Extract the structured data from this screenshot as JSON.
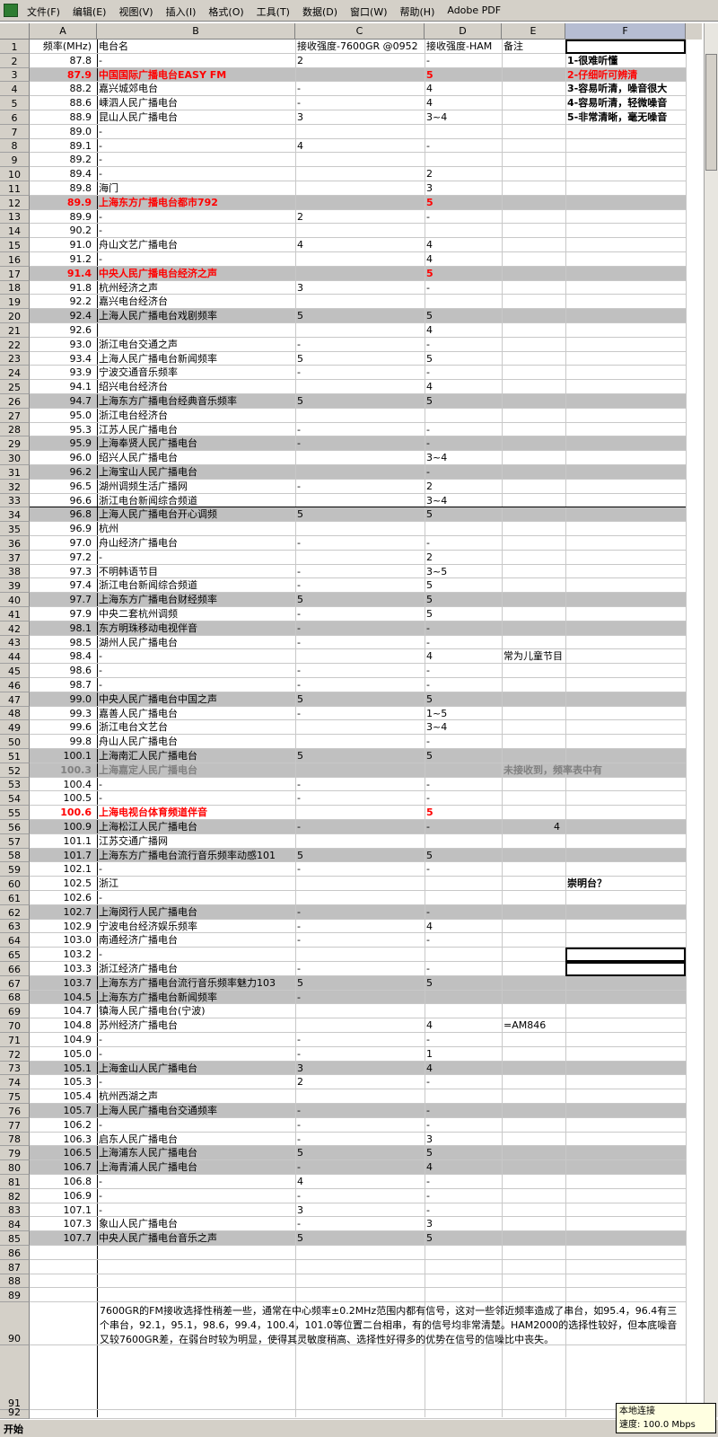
{
  "menu": [
    "文件(F)",
    "编辑(E)",
    "视图(V)",
    "插入(I)",
    "格式(O)",
    "工具(T)",
    "数据(D)",
    "窗口(W)",
    "帮助(H)",
    "Adobe PDF"
  ],
  "columns": [
    "A",
    "B",
    "C",
    "D",
    "E",
    "F"
  ],
  "tooltip": {
    "title": "本地连接",
    "speed": "速度: 100.0 Mbps"
  },
  "taskbar": {
    "start": "开始"
  },
  "rows": [
    {
      "n": "1",
      "cells": [
        "频率(MHz)",
        "电台名",
        "接收强度-7600GR @0952",
        "接收强度-HAM",
        "备注",
        null
      ]
    },
    {
      "n": "2",
      "cells": [
        "87.8",
        "-",
        "2",
        "-",
        null,
        "1-很难听懂"
      ]
    },
    {
      "n": "3",
      "cells": [
        "87.9",
        "中国国际广播电台EASY FM",
        null,
        "5",
        null,
        "2-仔细听可辨清"
      ],
      "shade": true,
      "text_color": "red"
    },
    {
      "n": "4",
      "cells": [
        "88.2",
        "嘉兴城郊电台",
        "-",
        "4",
        null,
        "3-容易听清，噪音很大"
      ]
    },
    {
      "n": "5",
      "cells": [
        "88.6",
        "嵊泗人民广播电台",
        "-",
        "4",
        null,
        "4-容易听清，轻微噪音"
      ]
    },
    {
      "n": "6",
      "cells": [
        "88.9",
        "昆山人民广播电台",
        "3",
        "3~4",
        null,
        "5-非常清晰，毫无噪音"
      ]
    },
    {
      "n": "7",
      "cells": [
        "89.0",
        "-",
        null,
        null,
        null,
        null
      ]
    },
    {
      "n": "8",
      "cells": [
        "89.1",
        "-",
        "4",
        "-",
        null,
        null
      ]
    },
    {
      "n": "9",
      "cells": [
        "89.2",
        "-",
        null,
        null,
        null,
        null
      ]
    },
    {
      "n": "10",
      "cells": [
        "89.4",
        "-",
        null,
        "2",
        null,
        null
      ]
    },
    {
      "n": "11",
      "cells": [
        "89.8",
        "海门",
        null,
        "3",
        null,
        null
      ]
    },
    {
      "n": "12",
      "cells": [
        "89.9",
        "上海东方广播电台都市792",
        null,
        "5",
        null,
        null
      ],
      "shade": true,
      "text_color": "red"
    },
    {
      "n": "13",
      "cells": [
        "89.9",
        "-",
        "2",
        "-",
        null,
        null
      ]
    },
    {
      "n": "14",
      "cells": [
        "90.2",
        "-",
        null,
        null,
        null,
        null
      ]
    },
    {
      "n": "15",
      "cells": [
        "91.0",
        "舟山文艺广播电台",
        "4",
        "4",
        null,
        null
      ]
    },
    {
      "n": "16",
      "cells": [
        "91.2",
        "-",
        null,
        "4",
        null,
        null
      ]
    },
    {
      "n": "17",
      "cells": [
        "91.4",
        "中央人民广播电台经济之声",
        null,
        "5",
        null,
        null
      ],
      "shade": true,
      "text_color": "red"
    },
    {
      "n": "18",
      "cells": [
        "91.8",
        "杭州经济之声",
        "3",
        "-",
        null,
        null
      ]
    },
    {
      "n": "19",
      "cells": [
        "92.2",
        "嘉兴电台经济台",
        null,
        null,
        null,
        null
      ]
    },
    {
      "n": "20",
      "cells": [
        "92.4",
        "上海人民广播电台戏剧频率",
        "5",
        "5",
        null,
        null
      ],
      "shade": true
    },
    {
      "n": "21",
      "cells": [
        "92.6",
        null,
        null,
        "4",
        null,
        null
      ]
    },
    {
      "n": "22",
      "cells": [
        "93.0",
        "浙江电台交通之声",
        "-",
        "-",
        null,
        null
      ]
    },
    {
      "n": "23",
      "cells": [
        "93.4",
        "上海人民广播电台新闻频率",
        "5",
        "5",
        null,
        null
      ]
    },
    {
      "n": "24",
      "cells": [
        "93.9",
        "宁波交通音乐频率",
        "-",
        "-",
        null,
        null
      ]
    },
    {
      "n": "25",
      "cells": [
        "94.1",
        "绍兴电台经济台",
        null,
        "4",
        null,
        null
      ]
    },
    {
      "n": "26",
      "cells": [
        "94.7",
        "上海东方广播电台经典音乐频率",
        "5",
        "5",
        null,
        null
      ],
      "shade": true
    },
    {
      "n": "27",
      "cells": [
        "95.0",
        "浙江电台经济台",
        null,
        null,
        null,
        null
      ]
    },
    {
      "n": "28",
      "cells": [
        "95.3",
        "江苏人民广播电台",
        "-",
        "-",
        null,
        null
      ]
    },
    {
      "n": "29",
      "cells": [
        "95.9",
        "上海奉贤人民广播电台",
        "-",
        "-",
        null,
        null
      ],
      "shade": true
    },
    {
      "n": "30",
      "cells": [
        "96.0",
        "绍兴人民广播电台",
        null,
        "3~4",
        null,
        null
      ]
    },
    {
      "n": "31",
      "cells": [
        "96.2",
        "上海宝山人民广播电台",
        null,
        "-",
        null,
        null
      ],
      "shade": true
    },
    {
      "n": "32",
      "cells": [
        "96.5",
        "湖州调频生活广播网",
        "-",
        "2",
        null,
        null
      ]
    },
    {
      "n": "33",
      "cells": [
        "96.6",
        "浙江电台新闻综合频道",
        null,
        "3~4",
        null,
        null
      ]
    },
    {
      "n": "34",
      "cells": [
        "96.8",
        "上海人民广播电台开心调频",
        "5",
        "5",
        null,
        null
      ],
      "shade": true
    },
    {
      "n": "35",
      "cells": [
        "96.9",
        "杭州",
        null,
        null,
        null,
        null
      ]
    },
    {
      "n": "36",
      "cells": [
        "97.0",
        "舟山经济广播电台",
        "-",
        "-",
        null,
        null
      ]
    },
    {
      "n": "37",
      "cells": [
        "97.2",
        "-",
        null,
        "2",
        null,
        null
      ]
    },
    {
      "n": "38",
      "cells": [
        "97.3",
        "不明韩语节目",
        "-",
        "3~5",
        null,
        null
      ]
    },
    {
      "n": "39",
      "cells": [
        "97.4",
        "浙江电台新闻综合频道",
        "-",
        "5",
        null,
        null
      ]
    },
    {
      "n": "40",
      "cells": [
        "97.7",
        "上海东方广播电台财经频率",
        "5",
        "5",
        null,
        null
      ],
      "shade": true
    },
    {
      "n": "41",
      "cells": [
        "97.9",
        "中央二套杭州调频",
        "-",
        "5",
        null,
        null
      ]
    },
    {
      "n": "42",
      "cells": [
        "98.1",
        "东方明珠移动电视伴音",
        "-",
        "-",
        null,
        null
      ],
      "shade": true
    },
    {
      "n": "43",
      "cells": [
        "98.5",
        "湖州人民广播电台",
        "-",
        "-",
        null,
        null
      ]
    },
    {
      "n": "44",
      "cells": [
        "98.4",
        "-",
        null,
        "4",
        "常为儿童节目",
        null
      ]
    },
    {
      "n": "45",
      "cells": [
        "98.6",
        "-",
        "-",
        "-",
        null,
        null
      ]
    },
    {
      "n": "46",
      "cells": [
        "98.7",
        "-",
        "-",
        "-",
        null,
        null
      ]
    },
    {
      "n": "47",
      "cells": [
        "99.0",
        "中央人民广播电台中国之声",
        "5",
        "5",
        null,
        null
      ],
      "shade": true
    },
    {
      "n": "48",
      "cells": [
        "99.3",
        "嘉善人民广播电台",
        "-",
        "1~5",
        null,
        null
      ]
    },
    {
      "n": "49",
      "cells": [
        "99.6",
        "浙江电台文艺台",
        null,
        "3~4",
        null,
        null
      ]
    },
    {
      "n": "50",
      "cells": [
        "99.8",
        "舟山人民广播电台",
        null,
        "-",
        null,
        null
      ]
    },
    {
      "n": "51",
      "cells": [
        "100.1",
        "上海南汇人民广播电台",
        "5",
        "5",
        null,
        null
      ],
      "shade": true
    },
    {
      "n": "52",
      "cells": [
        "100.3",
        "上海嘉定人民广播电台",
        null,
        null,
        "未接收到，频率表中有",
        null
      ],
      "shade": true,
      "text_color": "gray"
    },
    {
      "n": "53",
      "cells": [
        "100.4",
        "-",
        "-",
        "-",
        null,
        null
      ]
    },
    {
      "n": "54",
      "cells": [
        "100.5",
        "-",
        "-",
        "-",
        null,
        null
      ]
    },
    {
      "n": "55",
      "cells": [
        "100.6",
        "上海电视台体育频道伴音",
        null,
        "5",
        null,
        null
      ],
      "text_color": "red"
    },
    {
      "n": "56",
      "cells": [
        "100.9",
        "上海松江人民广播电台",
        "-",
        "-",
        "4",
        null
      ],
      "shade": true
    },
    {
      "n": "57",
      "cells": [
        "101.1",
        "江苏交通广播网",
        null,
        null,
        null,
        null
      ]
    },
    {
      "n": "58",
      "cells": [
        "101.7",
        "上海东方广播电台流行音乐频率动感101",
        "5",
        "5",
        null,
        null
      ],
      "shade": true
    },
    {
      "n": "59",
      "cells": [
        "102.1",
        "-",
        "-",
        "-",
        null,
        null
      ]
    },
    {
      "n": "60",
      "cells": [
        "102.5",
        "浙江",
        null,
        null,
        null,
        "崇明台？"
      ]
    },
    {
      "n": "61",
      "cells": [
        "102.6",
        "-",
        null,
        null,
        null,
        null
      ]
    },
    {
      "n": "62",
      "cells": [
        "102.7",
        "上海闵行人民广播电台",
        "-",
        "-",
        null,
        null
      ],
      "shade": true
    },
    {
      "n": "63",
      "cells": [
        "102.9",
        "宁波电台经济娱乐频率",
        "-",
        "4",
        null,
        null
      ]
    },
    {
      "n": "64",
      "cells": [
        "103.0",
        "南通经济广播电台",
        "-",
        "-",
        null,
        null
      ]
    },
    {
      "n": "65",
      "cells": [
        "103.2",
        "-",
        null,
        null,
        null,
        null
      ]
    },
    {
      "n": "66",
      "cells": [
        "103.3",
        "浙江经济广播电台",
        "-",
        "-",
        null,
        null
      ]
    },
    {
      "n": "67",
      "cells": [
        "103.7",
        "上海东方广播电台流行音乐频率魅力103",
        "5",
        "5",
        null,
        null
      ],
      "shade": true
    },
    {
      "n": "68",
      "cells": [
        "104.5",
        "上海东方广播电台新闻频率",
        "-",
        null,
        null,
        null
      ],
      "shade": true
    },
    {
      "n": "69",
      "cells": [
        "104.7",
        "镇海人民广播电台(宁波)",
        null,
        null,
        null,
        null
      ]
    },
    {
      "n": "70",
      "cells": [
        "104.8",
        "苏州经济广播电台",
        null,
        "4",
        "=AM846",
        null
      ]
    },
    {
      "n": "71",
      "cells": [
        "104.9",
        "-",
        "-",
        "-",
        null,
        null
      ]
    },
    {
      "n": "72",
      "cells": [
        "105.0",
        "-",
        "-",
        "1",
        null,
        null
      ]
    },
    {
      "n": "73",
      "cells": [
        "105.1",
        "上海金山人民广播电台",
        "3",
        "4",
        null,
        null
      ],
      "shade": true
    },
    {
      "n": "74",
      "cells": [
        "105.3",
        "-",
        "2",
        "-",
        null,
        null
      ]
    },
    {
      "n": "75",
      "cells": [
        "105.4",
        "杭州西湖之声",
        null,
        null,
        null,
        null
      ]
    },
    {
      "n": "76",
      "cells": [
        "105.7",
        "上海人民广播电台交通频率",
        "-",
        "-",
        null,
        null
      ],
      "shade": true
    },
    {
      "n": "77",
      "cells": [
        "106.2",
        "-",
        "-",
        "-",
        null,
        null
      ]
    },
    {
      "n": "78",
      "cells": [
        "106.3",
        "启东人民广播电台",
        "-",
        "3",
        null,
        null
      ]
    },
    {
      "n": "79",
      "cells": [
        "106.5",
        "上海浦东人民广播电台",
        "5",
        "5",
        null,
        null
      ],
      "shade": true
    },
    {
      "n": "80",
      "cells": [
        "106.7",
        "上海青浦人民广播电台",
        "-",
        "4",
        null,
        null
      ],
      "shade": true
    },
    {
      "n": "81",
      "cells": [
        "106.8",
        "-",
        "4",
        "-",
        null,
        null
      ]
    },
    {
      "n": "82",
      "cells": [
        "106.9",
        "-",
        "-",
        "-",
        null,
        null
      ]
    },
    {
      "n": "83",
      "cells": [
        "107.1",
        "-",
        "3",
        "-",
        null,
        null
      ]
    },
    {
      "n": "84",
      "cells": [
        "107.3",
        "象山人民广播电台",
        "-",
        "3",
        null,
        null
      ]
    },
    {
      "n": "85",
      "cells": [
        "107.7",
        "中央人民广播电台音乐之声",
        "5",
        "5",
        null,
        null
      ],
      "shade": true
    },
    {
      "n": "86"
    },
    {
      "n": "87"
    },
    {
      "n": "88"
    },
    {
      "n": "89"
    },
    {
      "n": "90",
      "cells": [
        null,
        "7600GR的FM接收选择性稍差一些，通常在中心频率±0.2MHz范围内都有信号，这对一些邻近频率造成了串台，如95.4，96.4有三个串台，92.1，95.1，98.6，99.4，100.4，101.0等位置二台相串，有的信号均非常清楚。HAM2000的选择性较好，但本底噪音又较7600GR差，在弱台时较为明显，使得其灵敏度稍高、选择性好得多的优势在信号的信噪比中丧失。",
        null,
        null,
        null,
        null
      ]
    },
    {
      "n": "91"
    },
    {
      "n": "92"
    }
  ]
}
